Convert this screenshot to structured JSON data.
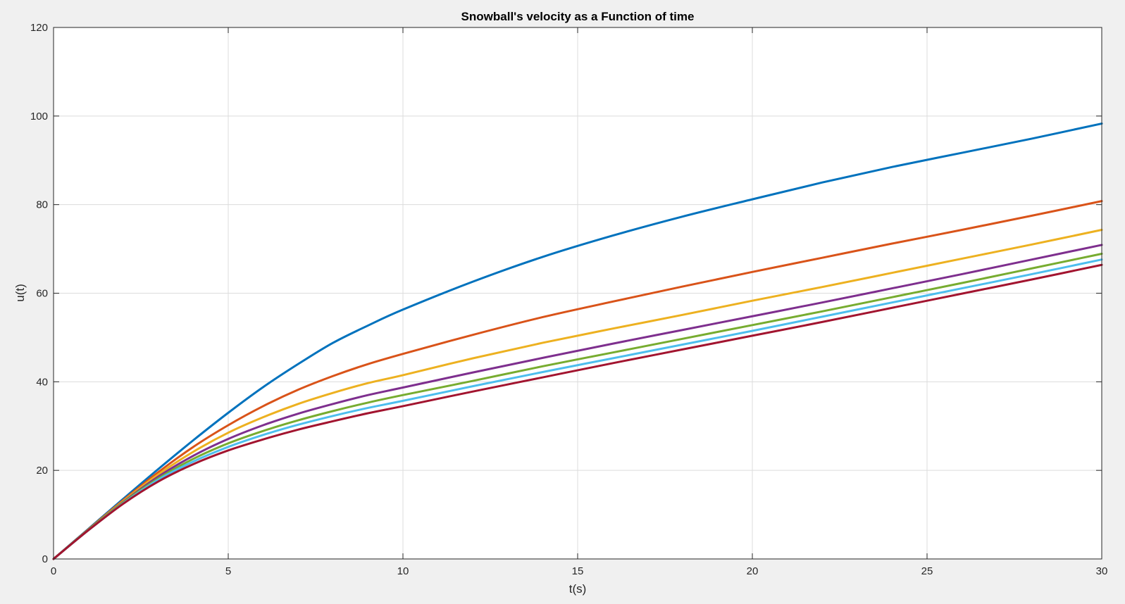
{
  "chart_data": {
    "type": "line",
    "title": "Snowball's velocity as a Function of time",
    "xlabel": "t(s)",
    "ylabel": "u(t)",
    "xlim": [
      0,
      30
    ],
    "ylim": [
      0,
      120
    ],
    "xticks": [
      0,
      5,
      10,
      15,
      20,
      25,
      30
    ],
    "yticks": [
      0,
      20,
      40,
      60,
      80,
      100,
      120
    ],
    "grid": true,
    "x": [
      0,
      1,
      2,
      3,
      4,
      5,
      6,
      7,
      8,
      9,
      10,
      12,
      14,
      16,
      18,
      20,
      22,
      24,
      26,
      28,
      30
    ],
    "series": [
      {
        "color": "#0072bd",
        "values": [
          0,
          6.8,
          13.6,
          20.3,
          26.8,
          33.0,
          38.8,
          44.0,
          48.8,
          52.7,
          56.3,
          62.6,
          68.2,
          73.0,
          77.3,
          81.2,
          85.0,
          88.5,
          91.7,
          94.9,
          98.3
        ]
      },
      {
        "color": "#d95319",
        "values": [
          0,
          6.7,
          13.3,
          19.6,
          25.3,
          30.2,
          34.5,
          38.2,
          41.3,
          44.0,
          46.3,
          50.6,
          54.6,
          58.1,
          61.5,
          64.8,
          68.0,
          71.2,
          74.3,
          77.5,
          80.8
        ]
      },
      {
        "color": "#edb120",
        "values": [
          0,
          6.6,
          13.1,
          19.1,
          24.2,
          28.5,
          32.0,
          35.0,
          37.5,
          39.7,
          41.5,
          45.3,
          48.8,
          52.0,
          55.1,
          58.3,
          61.4,
          64.6,
          67.8,
          71.0,
          74.3
        ]
      },
      {
        "color": "#7e2f8e",
        "values": [
          0,
          6.6,
          12.9,
          18.6,
          23.3,
          27.1,
          30.2,
          32.8,
          35.0,
          37.0,
          38.7,
          42.1,
          45.4,
          48.6,
          51.7,
          54.8,
          57.9,
          61.1,
          64.3,
          67.6,
          70.9
        ]
      },
      {
        "color": "#77ac30",
        "values": [
          0,
          6.6,
          12.8,
          18.2,
          22.6,
          26.1,
          28.9,
          31.3,
          33.4,
          35.3,
          37.0,
          40.2,
          43.5,
          46.6,
          49.7,
          52.8,
          55.9,
          59.1,
          62.3,
          65.6,
          68.9
        ]
      },
      {
        "color": "#4dbeee",
        "values": [
          0,
          6.5,
          12.6,
          17.9,
          22.0,
          25.3,
          28.0,
          30.3,
          32.3,
          34.1,
          35.7,
          39.0,
          42.2,
          45.3,
          48.4,
          51.5,
          54.7,
          57.9,
          61.1,
          64.3,
          67.6
        ]
      },
      {
        "color": "#a2142f",
        "values": [
          0,
          6.5,
          12.5,
          17.5,
          21.4,
          24.5,
          27.0,
          29.2,
          31.1,
          32.9,
          34.5,
          37.8,
          41.0,
          44.2,
          47.3,
          50.4,
          53.5,
          56.7,
          59.9,
          63.1,
          66.4
        ]
      }
    ]
  }
}
